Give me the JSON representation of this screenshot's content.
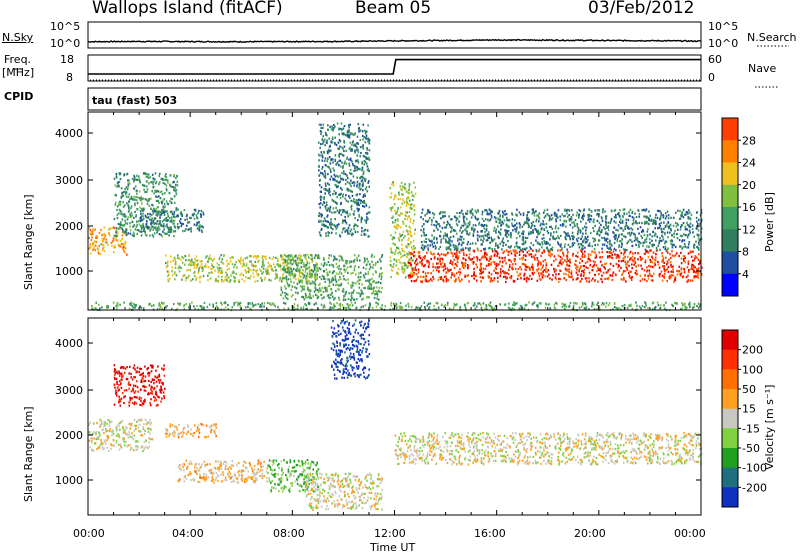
{
  "header": {
    "site": "Wallops Island (fitACF)",
    "beam": "Beam 05",
    "date": "03/Feb/2012"
  },
  "noise_panel": {
    "left_label": "N.Sky",
    "right_label": "N.Search",
    "left_ticks": [
      "10^5",
      "10^0"
    ],
    "right_ticks": [
      "10^5",
      "10^0"
    ]
  },
  "freq_panel": {
    "left_label_1": "Freq.",
    "left_label_2": "[MHz]",
    "right_label": "Nave",
    "left_ticks": [
      "18",
      "8"
    ],
    "right_ticks": [
      "60",
      "0"
    ]
  },
  "cpid": {
    "label": "CPID",
    "value": "tau (fast) 503"
  },
  "power_panel": {
    "ylabel": "Slant Range [km]",
    "yticks": [
      "4000",
      "3000",
      "2000",
      "1000"
    ],
    "colorbar_label": "Power [dB]",
    "colorbar_ticks": [
      "28",
      "24",
      "20",
      "16",
      "12",
      "8",
      "4"
    ],
    "colors": [
      "#0000ff",
      "#1f4fa0",
      "#2f7f5f",
      "#3fa060",
      "#80c040",
      "#f0c020",
      "#ff8000",
      "#ff4000",
      "#e60000"
    ]
  },
  "velocity_panel": {
    "ylabel": "Slant Range [km]",
    "yticks": [
      "4000",
      "3000",
      "2000",
      "1000"
    ],
    "colorbar_label": "Velocity [m s⁻¹]",
    "colorbar_ticks": [
      "200",
      "100",
      "50",
      "15",
      "-15",
      "-50",
      "-100",
      "-200"
    ],
    "colors": [
      "#1030c0",
      "#1f6f7f",
      "#20a020",
      "#80d040",
      "#c8c8c0",
      "#ffa020",
      "#ff7000",
      "#ff3000",
      "#e00000"
    ]
  },
  "xaxis": {
    "ticks": [
      "00:00",
      "04:00",
      "08:00",
      "12:00",
      "16:00",
      "20:00",
      "00:00"
    ],
    "label": "Time UT"
  },
  "chart_data": [
    {
      "type": "line",
      "title": "N.Sky / N.Search",
      "scale": "log",
      "ylim": [
        1,
        100000
      ],
      "x_hours": [
        0,
        2,
        4,
        6,
        8,
        10,
        12,
        14,
        16,
        18,
        20,
        22,
        24
      ],
      "series": [
        {
          "name": "N.Sky",
          "values": [
            12,
            14,
            13,
            12,
            13,
            14,
            18,
            22,
            28,
            26,
            22,
            20,
            16
          ]
        }
      ]
    },
    {
      "type": "line",
      "title": "Freq. [MHz] / Nave",
      "x_hours": [
        0,
        11.95,
        12.05,
        24
      ],
      "series": [
        {
          "name": "Freq.",
          "values": [
            10.5,
            10.5,
            16.5,
            16.5
          ]
        }
      ],
      "ylim": [
        8,
        18
      ]
    },
    {
      "type": "heatmap",
      "title": "Power [dB]",
      "xlim_hours": [
        0,
        24
      ],
      "ylim_km": [
        180,
        4500
      ],
      "vrange_db": [
        0,
        30
      ],
      "features": [
        {
          "start_h": 0.0,
          "end_h": 1.5,
          "range_km": [
            1400,
            2000
          ],
          "power_db": 20
        },
        {
          "start_h": 1.0,
          "end_h": 3.5,
          "range_km": [
            1800,
            3200
          ],
          "power_db": 10
        },
        {
          "start_h": 2.0,
          "end_h": 4.5,
          "range_km": [
            1900,
            2400
          ],
          "power_db": 8
        },
        {
          "start_h": 3.0,
          "end_h": 9.0,
          "range_km": [
            800,
            1400
          ],
          "power_db": 16
        },
        {
          "start_h": 7.5,
          "end_h": 11.5,
          "range_km": [
            400,
            1400
          ],
          "power_db": 12
        },
        {
          "start_h": 9.0,
          "end_h": 11.0,
          "range_km": [
            1800,
            4300
          ],
          "power_db": 8
        },
        {
          "start_h": 11.8,
          "end_h": 12.8,
          "range_km": [
            900,
            3000
          ],
          "power_db": 16
        },
        {
          "start_h": 12.5,
          "end_h": 24.0,
          "range_km": [
            800,
            1500
          ],
          "power_db": 26
        },
        {
          "start_h": 13.0,
          "end_h": 24.0,
          "range_km": [
            1500,
            2400
          ],
          "power_db": 8
        },
        {
          "start_h": 0.0,
          "end_h": 24.0,
          "range_km": [
            180,
            350
          ],
          "power_db": 12
        }
      ]
    },
    {
      "type": "heatmap",
      "title": "Velocity [m s⁻¹]",
      "xlim_hours": [
        0,
        24
      ],
      "ylim_km": [
        180,
        4500
      ],
      "vrange_ms": [
        -200,
        200
      ],
      "features": [
        {
          "start_h": 0.0,
          "end_h": 2.5,
          "range_km": [
            1600,
            2300
          ],
          "velocity_ms": 0
        },
        {
          "start_h": 1.0,
          "end_h": 3.0,
          "range_km": [
            2600,
            3500
          ],
          "velocity_ms": 180
        },
        {
          "start_h": 3.0,
          "end_h": 5.0,
          "range_km": [
            1900,
            2200
          ],
          "velocity_ms": 30
        },
        {
          "start_h": 3.5,
          "end_h": 7.0,
          "range_km": [
            900,
            1400
          ],
          "velocity_ms": 30
        },
        {
          "start_h": 7.0,
          "end_h": 9.0,
          "range_km": [
            700,
            1400
          ],
          "velocity_ms": -60
        },
        {
          "start_h": 8.5,
          "end_h": 11.5,
          "range_km": [
            300,
            1100
          ],
          "velocity_ms": 0
        },
        {
          "start_h": 9.5,
          "end_h": 11.0,
          "range_km": [
            3200,
            4500
          ],
          "velocity_ms": -180
        },
        {
          "start_h": 12.0,
          "end_h": 24.0,
          "range_km": [
            1300,
            2000
          ],
          "velocity_ms": 0
        }
      ]
    }
  ]
}
